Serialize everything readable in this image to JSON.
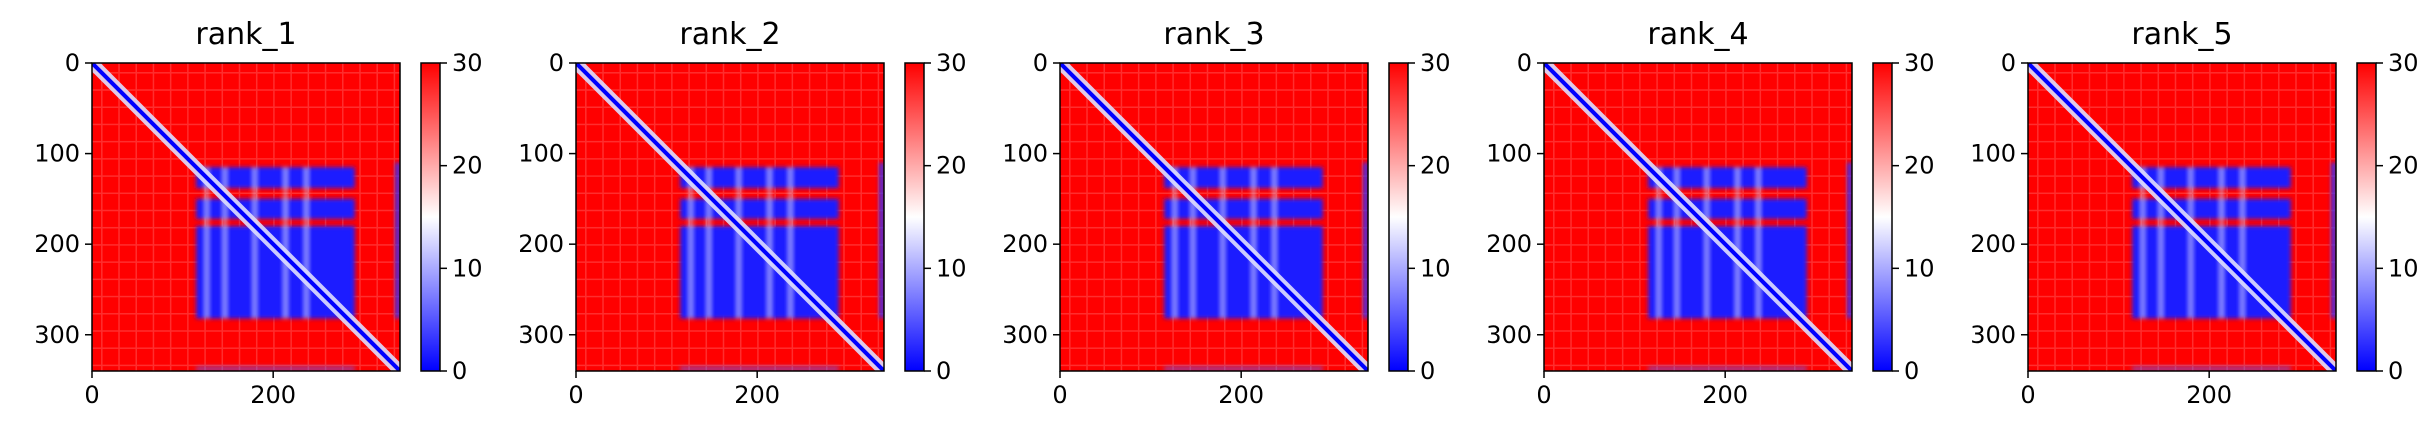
{
  "chart_data": [
    {
      "type": "heatmap",
      "title": "rank_1",
      "matrix_size": 340,
      "xlim": [
        0,
        340
      ],
      "ylim": [
        340,
        0
      ],
      "x_ticks": [
        0,
        200
      ],
      "y_ticks": [
        0,
        100,
        200,
        300
      ],
      "x_tick_labels": [
        "0",
        "200"
      ],
      "y_tick_labels": [
        "0",
        "100",
        "200",
        "300"
      ],
      "colorbar": {
        "range": [
          0,
          30
        ],
        "ticks": [
          0,
          10,
          20,
          30
        ],
        "tick_labels": [
          "0",
          "10",
          "20",
          "30"
        ],
        "colors": [
          "#0000ff",
          "#ffffff",
          "#ff0000"
        ]
      },
      "low_blocks": [
        [
          115,
          138
        ],
        [
          150,
          172
        ],
        [
          180,
          282
        ]
      ],
      "block_x_range": [
        115,
        290
      ],
      "edge_strip": {
        "x": [
          335,
          340
        ],
        "y": [
          110,
          282
        ]
      },
      "diagonal_value": 0,
      "background_value": 30
    },
    {
      "type": "heatmap",
      "title": "rank_2",
      "matrix_size": 340,
      "xlim": [
        0,
        340
      ],
      "ylim": [
        340,
        0
      ],
      "x_ticks": [
        0,
        200
      ],
      "y_ticks": [
        0,
        100,
        200,
        300
      ],
      "x_tick_labels": [
        "0",
        "200"
      ],
      "y_tick_labels": [
        "0",
        "100",
        "200",
        "300"
      ],
      "colorbar": {
        "range": [
          0,
          30
        ],
        "ticks": [
          0,
          10,
          20,
          30
        ],
        "tick_labels": [
          "0",
          "10",
          "20",
          "30"
        ],
        "colors": [
          "#0000ff",
          "#ffffff",
          "#ff0000"
        ]
      },
      "low_blocks": [
        [
          115,
          138
        ],
        [
          150,
          172
        ],
        [
          180,
          282
        ]
      ],
      "block_x_range": [
        115,
        290
      ],
      "edge_strip": {
        "x": [
          335,
          340
        ],
        "y": [
          110,
          282
        ]
      },
      "diagonal_value": 0,
      "background_value": 30
    },
    {
      "type": "heatmap",
      "title": "rank_3",
      "matrix_size": 340,
      "xlim": [
        0,
        340
      ],
      "ylim": [
        340,
        0
      ],
      "x_ticks": [
        0,
        200
      ],
      "y_ticks": [
        0,
        100,
        200,
        300
      ],
      "x_tick_labels": [
        "0",
        "200"
      ],
      "y_tick_labels": [
        "0",
        "100",
        "200",
        "300"
      ],
      "colorbar": {
        "range": [
          0,
          30
        ],
        "ticks": [
          0,
          10,
          20,
          30
        ],
        "tick_labels": [
          "0",
          "10",
          "20",
          "30"
        ],
        "colors": [
          "#0000ff",
          "#ffffff",
          "#ff0000"
        ]
      },
      "low_blocks": [
        [
          115,
          138
        ],
        [
          150,
          172
        ],
        [
          180,
          282
        ]
      ],
      "block_x_range": [
        115,
        290
      ],
      "edge_strip": {
        "x": [
          335,
          340
        ],
        "y": [
          110,
          282
        ]
      },
      "diagonal_value": 0,
      "background_value": 30
    },
    {
      "type": "heatmap",
      "title": "rank_4",
      "matrix_size": 340,
      "xlim": [
        0,
        340
      ],
      "ylim": [
        340,
        0
      ],
      "x_ticks": [
        0,
        200
      ],
      "y_ticks": [
        0,
        100,
        200,
        300
      ],
      "x_tick_labels": [
        "0",
        "200"
      ],
      "y_tick_labels": [
        "0",
        "100",
        "200",
        "300"
      ],
      "colorbar": {
        "range": [
          0,
          30
        ],
        "ticks": [
          0,
          10,
          20,
          30
        ],
        "tick_labels": [
          "0",
          "10",
          "20",
          "30"
        ],
        "colors": [
          "#0000ff",
          "#ffffff",
          "#ff0000"
        ]
      },
      "low_blocks": [
        [
          115,
          138
        ],
        [
          150,
          172
        ],
        [
          180,
          282
        ]
      ],
      "block_x_range": [
        115,
        290
      ],
      "edge_strip": {
        "x": [
          335,
          340
        ],
        "y": [
          110,
          282
        ]
      },
      "diagonal_value": 0,
      "background_value": 30
    },
    {
      "type": "heatmap",
      "title": "rank_5",
      "matrix_size": 340,
      "xlim": [
        0,
        340
      ],
      "ylim": [
        340,
        0
      ],
      "x_ticks": [
        0,
        200
      ],
      "y_ticks": [
        0,
        100,
        200,
        300
      ],
      "x_tick_labels": [
        "0",
        "200"
      ],
      "y_tick_labels": [
        "0",
        "100",
        "200",
        "300"
      ],
      "colorbar": {
        "range": [
          0,
          30
        ],
        "ticks": [
          0,
          10,
          20,
          30
        ],
        "tick_labels": [
          "0",
          "10",
          "20",
          "30"
        ],
        "colors": [
          "#0000ff",
          "#ffffff",
          "#ff0000"
        ]
      },
      "low_blocks": [
        [
          115,
          138
        ],
        [
          150,
          172
        ],
        [
          180,
          282
        ]
      ],
      "block_x_range": [
        115,
        290
      ],
      "edge_strip": {
        "x": [
          335,
          340
        ],
        "y": [
          110,
          282
        ]
      },
      "diagonal_value": 0,
      "background_value": 30
    }
  ]
}
